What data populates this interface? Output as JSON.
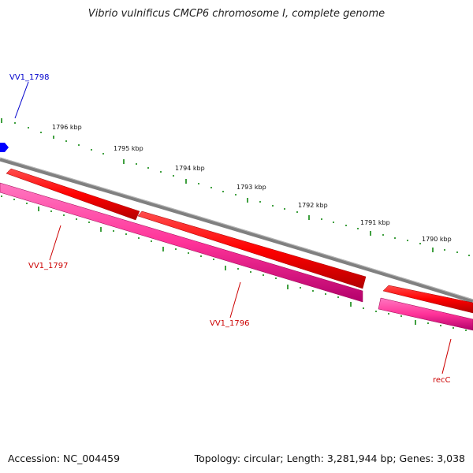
{
  "title": "Vibrio vulnificus CMCP6 chromosome I, complete genome",
  "footer": {
    "accession": "Accession: NC_004459",
    "summary": "Topology: circular; Length: 3,281,944 bp; Genes: 3,038"
  },
  "kbp_labels": [
    "1796 kbp",
    "1795 kbp",
    "1794 kbp",
    "1793 kbp",
    "1792 kbp",
    "1791 kbp",
    "1790 kbp"
  ],
  "genes": [
    {
      "name": "VV1_1798",
      "color": "#0000cc"
    },
    {
      "name": "VV1_1797",
      "color": "#cc0000"
    },
    {
      "name": "VV1_1796",
      "color": "#cc0000"
    },
    {
      "name": "recC",
      "color": "#cc0000"
    }
  ],
  "colors": {
    "backbone": "#808080",
    "cds_forward": "#ff0000",
    "cds_reverse": "#ff3399",
    "gene_blue": "#0000ff",
    "ticks": "#008000"
  }
}
